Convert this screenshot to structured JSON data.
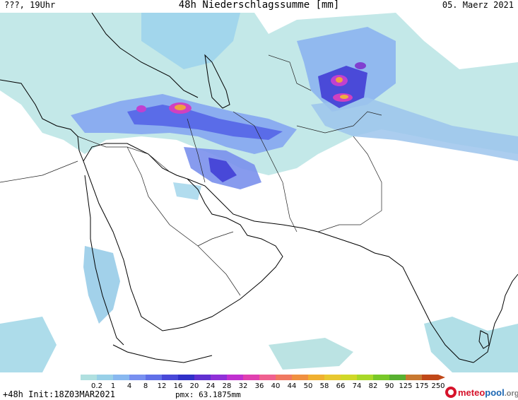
{
  "header": {
    "left": "???, 19Uhr",
    "title": "48h Niederschlagssumme [mm]",
    "date": "05. Maerz 2021"
  },
  "footer": {
    "init": "+48h  Init:18Z03MAR2021",
    "pmx": "pmx: 63.1875mm"
  },
  "logo": {
    "part_a": "meteo",
    "part_b": "pool",
    "part_c": ".org"
  },
  "legend": {
    "labels": [
      "0.2",
      "1",
      "4",
      "8",
      "12",
      "16",
      "20",
      "24",
      "28",
      "32",
      "36",
      "40",
      "44",
      "50",
      "58",
      "66",
      "74",
      "82",
      "90",
      "125",
      "175",
      "250"
    ],
    "colors": [
      "#b0e0e0",
      "#98d0e8",
      "#88b8f0",
      "#7890f0",
      "#6070e8",
      "#4848d8",
      "#3030c8",
      "#6030d0",
      "#9030d8",
      "#c030d0",
      "#e040b0",
      "#f06090",
      "#f07860",
      "#f09040",
      "#f0b030",
      "#e8c830",
      "#d0d828",
      "#a8d828",
      "#78c828",
      "#58b030",
      "#c87830",
      "#c04818"
    ]
  },
  "map": {
    "region": "Middle East / South Asia",
    "precip_colors": {
      "light": "#a8dcdc",
      "lightblue": "#8cc4ec",
      "blue": "#6c8cec",
      "dark": "#3c3cd0",
      "magenta": "#d040c0",
      "orange": "#f0a040"
    }
  }
}
